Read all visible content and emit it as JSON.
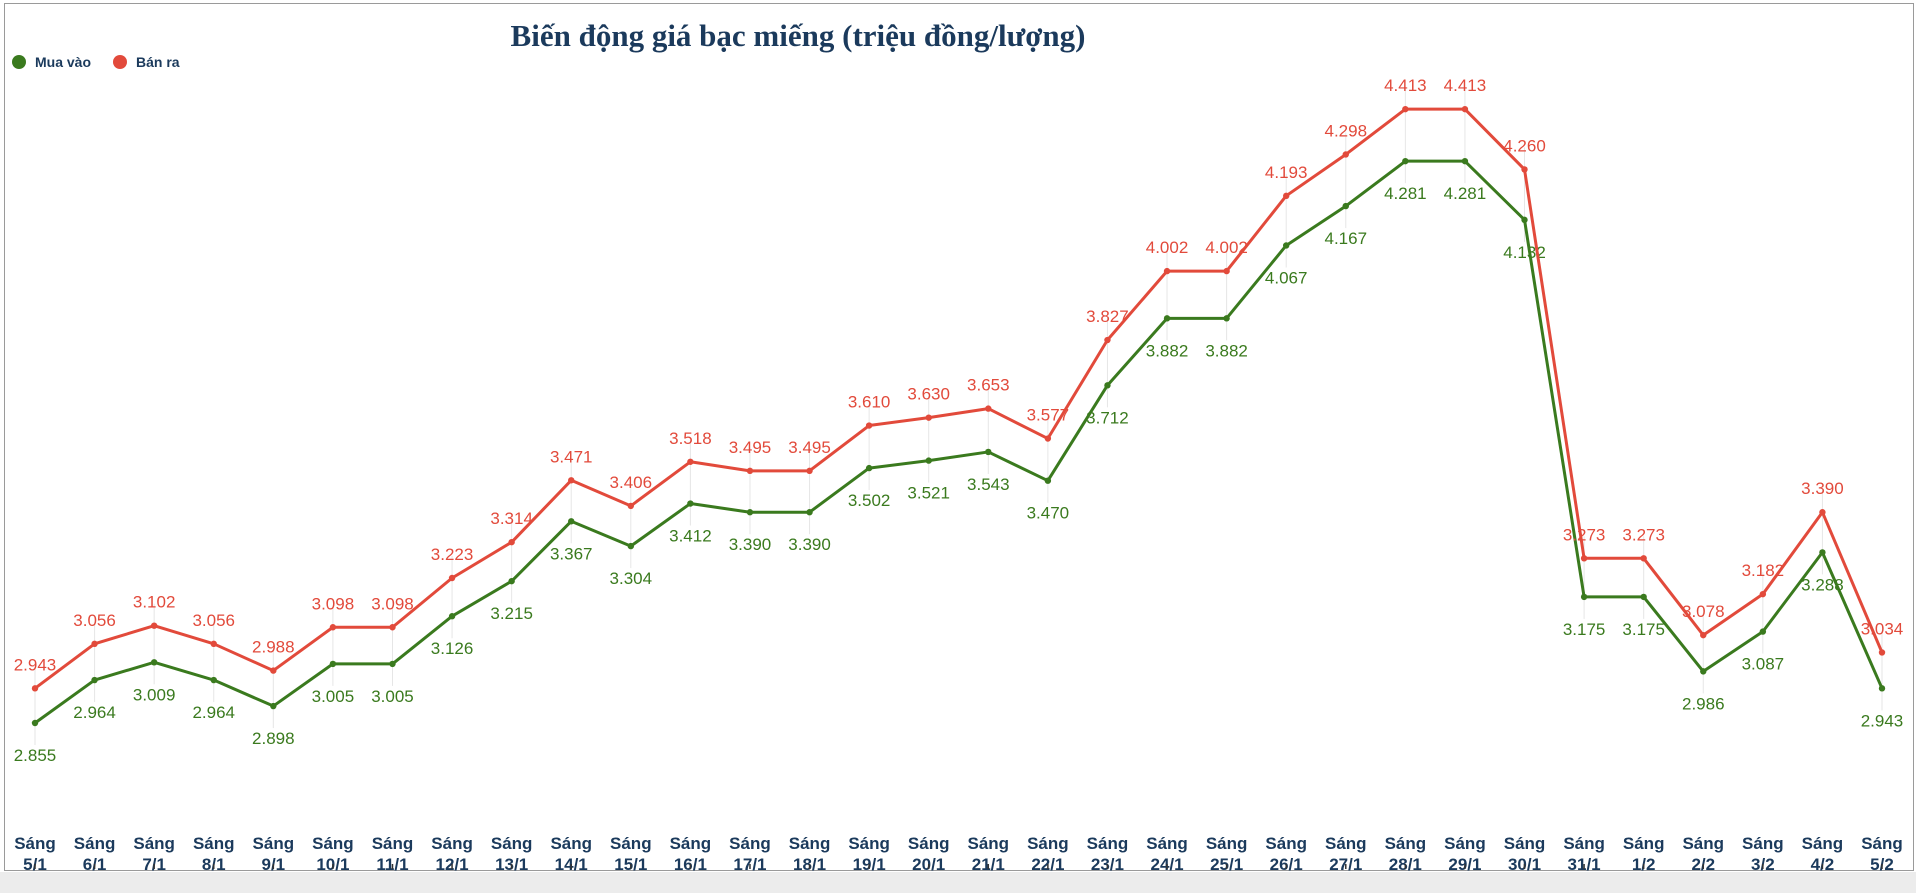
{
  "chart_data": {
    "type": "line",
    "title": "Biến động giá bạc miếng (triệu đồng/lượng)",
    "xlabel": "",
    "ylabel": "",
    "legend_position": "top-left",
    "grid": false,
    "categories": [
      "Sáng 5/1",
      "Sáng 6/1",
      "Sáng 7/1",
      "Sáng 8/1",
      "Sáng 9/1",
      "Sáng 10/1",
      "Sáng 11/1",
      "Sáng 12/1",
      "Sáng 13/1",
      "Sáng 14/1",
      "Sáng 15/1",
      "Sáng 16/1",
      "Sáng 17/1",
      "Sáng 18/1",
      "Sáng 19/1",
      "Sáng 20/1",
      "Sáng 21/1",
      "Sáng 22/1",
      "Sáng 23/1",
      "Sáng 24/1",
      "Sáng 25/1",
      "Sáng 26/1",
      "Sáng 27/1",
      "Sáng 28/1",
      "Sáng 29/1",
      "Sáng 30/1",
      "Sáng 31/1",
      "Sáng 1/2",
      "Sáng 2/2",
      "Sáng 3/2",
      "Sáng 4/2",
      "Sáng 5/2"
    ],
    "series": [
      {
        "name": "Mua vào",
        "color": "#3a7a1e",
        "values": [
          2.855,
          2.964,
          3.009,
          2.964,
          2.898,
          3.005,
          3.005,
          3.126,
          3.215,
          3.367,
          3.304,
          3.412,
          3.39,
          3.39,
          3.502,
          3.521,
          3.543,
          3.47,
          3.712,
          3.882,
          3.882,
          4.067,
          4.167,
          4.281,
          4.281,
          4.132,
          3.175,
          3.175,
          2.986,
          3.087,
          3.288,
          2.943
        ]
      },
      {
        "name": "Bán ra",
        "color": "#e24a3b",
        "values": [
          2.943,
          3.056,
          3.102,
          3.056,
          2.988,
          3.098,
          3.098,
          3.223,
          3.314,
          3.471,
          3.406,
          3.518,
          3.495,
          3.495,
          3.61,
          3.63,
          3.653,
          3.577,
          3.827,
          4.002,
          4.002,
          4.193,
          4.298,
          4.413,
          4.413,
          4.26,
          3.273,
          3.273,
          3.078,
          3.182,
          3.39,
          3.034
        ]
      }
    ]
  }
}
